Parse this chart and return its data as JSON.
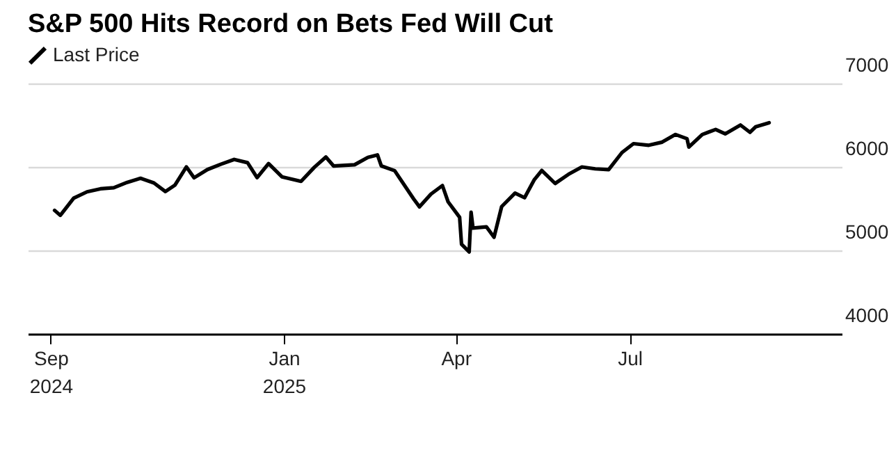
{
  "chart_data": {
    "type": "line",
    "title": "S&P 500 Hits Record on Bets Fed Will Cut",
    "legend": "top left",
    "grid": "y",
    "x": [
      "2024-09-03",
      "2024-09-06",
      "2024-09-13",
      "2024-09-20",
      "2024-09-27",
      "2024-10-04",
      "2024-10-11",
      "2024-10-18",
      "2024-10-25",
      "2024-10-31",
      "2024-11-05",
      "2024-11-11",
      "2024-11-15",
      "2024-11-22",
      "2024-11-29",
      "2024-12-06",
      "2024-12-13",
      "2024-12-18",
      "2024-12-24",
      "2024-12-31",
      "2025-01-10",
      "2025-01-17",
      "2025-01-23",
      "2025-01-27",
      "2025-02-07",
      "2025-02-14",
      "2025-02-19",
      "2025-02-21",
      "2025-02-28",
      "2025-03-10",
      "2025-03-13",
      "2025-03-19",
      "2025-03-25",
      "2025-03-28",
      "2025-04-03",
      "2025-04-04",
      "2025-04-08",
      "2025-04-09",
      "2025-04-10",
      "2025-04-17",
      "2025-04-21",
      "2025-04-25",
      "2025-05-02",
      "2025-05-07",
      "2025-05-12",
      "2025-05-16",
      "2025-05-23",
      "2025-05-30",
      "2025-06-06",
      "2025-06-13",
      "2025-06-20",
      "2025-06-27",
      "2025-07-03",
      "2025-07-11",
      "2025-07-18",
      "2025-07-25",
      "2025-07-31",
      "2025-08-01",
      "2025-08-08",
      "2025-08-15",
      "2025-08-20",
      "2025-08-28",
      "2025-09-02",
      "2025-09-05",
      "2025-09-12"
    ],
    "series": [
      {
        "name": "Last Price",
        "color": "#000000",
        "values": [
          5480,
          5420,
          5626,
          5702,
          5738,
          5751,
          5815,
          5864,
          5808,
          5705,
          5782,
          6001,
          5870,
          5969,
          6032,
          6090,
          6051,
          5872,
          6040,
          5882,
          5827,
          5997,
          6119,
          6012,
          6026,
          6115,
          6144,
          6013,
          5955,
          5615,
          5522,
          5675,
          5777,
          5581,
          5397,
          5074,
          4982,
          5457,
          5268,
          5283,
          5158,
          5525,
          5686,
          5631,
          5844,
          5958,
          5802,
          5912,
          6000,
          5977,
          5967,
          6173,
          6279,
          6260,
          6297,
          6389,
          6339,
          6238,
          6389,
          6449,
          6396,
          6502,
          6415,
          6482,
          6530
        ]
      }
    ],
    "xlim": [
      "2024-08-20",
      "2025-10-20"
    ],
    "xticks": [
      {
        "value": "2024-09-01",
        "label": "Sep\n2024"
      },
      {
        "value": "2025-01-01",
        "label": "Jan\n2025"
      },
      {
        "value": "2025-04-01",
        "label": "Apr"
      },
      {
        "value": "2025-07-01",
        "label": "Jul"
      }
    ],
    "ylim": [
      4000,
      7000
    ],
    "yticks": [
      4000,
      5000,
      6000,
      7000
    ]
  }
}
